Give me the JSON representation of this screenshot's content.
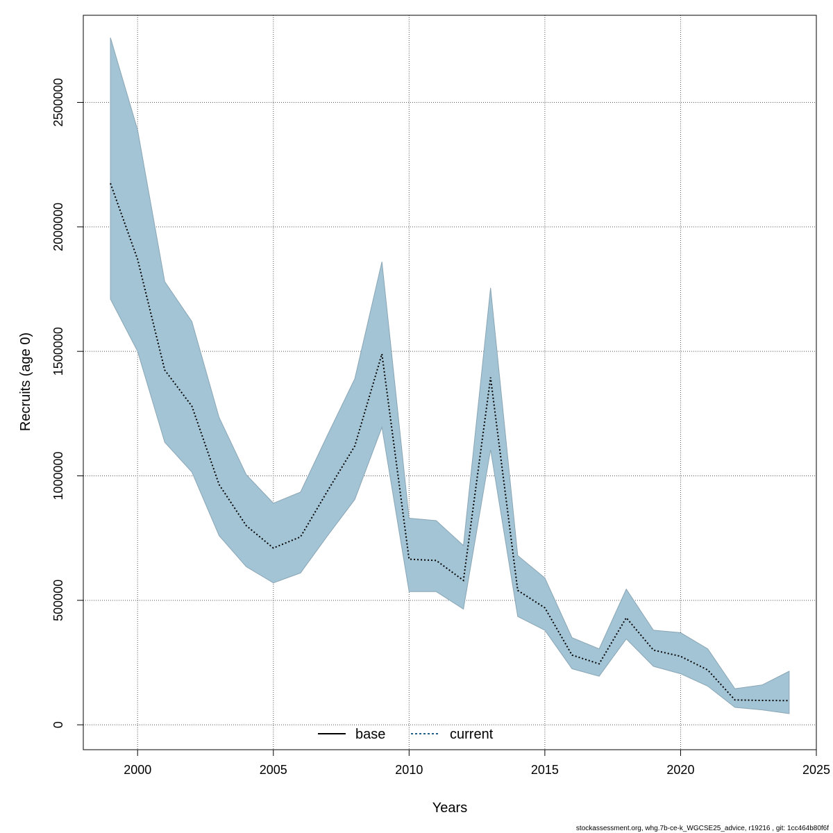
{
  "chart_data": {
    "type": "area",
    "xlabel": "Years",
    "ylabel": "Recruits (age 0)",
    "xlim": [
      1998,
      2025
    ],
    "ylim": [
      -100000,
      2850000
    ],
    "x_ticks": [
      2000,
      2005,
      2010,
      2015,
      2020,
      2025
    ],
    "x_tick_labels": [
      "2000",
      "2005",
      "2010",
      "2015",
      "2020",
      "2025"
    ],
    "y_ticks": [
      0,
      500000,
      1000000,
      1500000,
      2000000,
      2500000
    ],
    "y_tick_labels": [
      "0",
      "500000",
      "1000000",
      "1500000",
      "2000000",
      "2500000"
    ],
    "grid": true,
    "grid_style": "dotted",
    "legend_position": "bottom-center",
    "years": [
      1999,
      2000,
      2001,
      2002,
      2003,
      2004,
      2005,
      2006,
      2007,
      2008,
      2009,
      2010,
      2011,
      2012,
      2013,
      2014,
      2015,
      2016,
      2017,
      2018,
      2019,
      2020,
      2021,
      2022,
      2023,
      2024
    ],
    "band": {
      "color": "#a3c4d5",
      "upper": [
        2760000,
        2390000,
        1780000,
        1620000,
        1235000,
        1005000,
        890000,
        935000,
        1165000,
        1390000,
        1860000,
        830000,
        820000,
        720000,
        1755000,
        680000,
        590000,
        350000,
        305000,
        545000,
        380000,
        370000,
        305000,
        145000,
        160000,
        215000
      ],
      "lower": [
        1710000,
        1500000,
        1135000,
        1015000,
        760000,
        635000,
        570000,
        610000,
        760000,
        905000,
        1195000,
        535000,
        535000,
        465000,
        1105000,
        435000,
        380000,
        225000,
        195000,
        345000,
        235000,
        205000,
        155000,
        70000,
        60000,
        45000
      ]
    },
    "series": [
      {
        "name": "base",
        "color": "#000000",
        "style": "solid",
        "values": [
          2175000,
          1870000,
          1425000,
          1280000,
          965000,
          800000,
          710000,
          755000,
          940000,
          1120000,
          1490000,
          665000,
          660000,
          580000,
          1395000,
          540000,
          470000,
          280000,
          245000,
          430000,
          300000,
          275000,
          220000,
          100000,
          98000,
          97000
        ]
      },
      {
        "name": "current",
        "color": "#1f5f8b",
        "style": "dotted",
        "values": [
          2175000,
          1870000,
          1425000,
          1280000,
          965000,
          800000,
          710000,
          755000,
          940000,
          1120000,
          1490000,
          665000,
          660000,
          580000,
          1395000,
          540000,
          470000,
          280000,
          245000,
          430000,
          300000,
          275000,
          220000,
          100000,
          98000,
          97000
        ]
      }
    ],
    "footer": "stockassessment.org, whg.7b-ce-k_WGCSE25_advice, r19216 , git: 1cc464b80f6f"
  }
}
